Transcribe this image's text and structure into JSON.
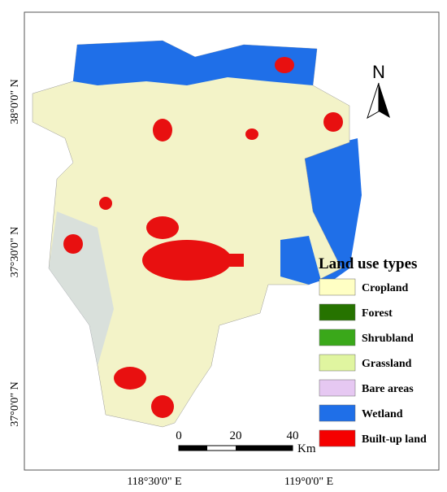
{
  "map": {
    "lat_labels": [
      "38°0'0\" N",
      "37°30'0\" N",
      "37°0'0\" N"
    ],
    "lon_labels": [
      "118°30'0\" E",
      "119°0'0\" E"
    ],
    "north": "N",
    "legend": {
      "title": "Land use types",
      "items": [
        {
          "label": "Cropland",
          "color": "#ffffc4"
        },
        {
          "label": "Forest",
          "color": "#267300"
        },
        {
          "label": "Shrubland",
          "color": "#3aa81a"
        },
        {
          "label": "Grassland",
          "color": "#e0f5a0"
        },
        {
          "label": "Bare areas",
          "color": "#e6c8f2"
        },
        {
          "label": "Wetland",
          "color": "#1f6fe8"
        },
        {
          "label": "Built-up land",
          "color": "#f50000"
        }
      ]
    },
    "scale_bar": {
      "ticks": [
        "0",
        "20",
        "40"
      ],
      "unit": "Km"
    }
  }
}
